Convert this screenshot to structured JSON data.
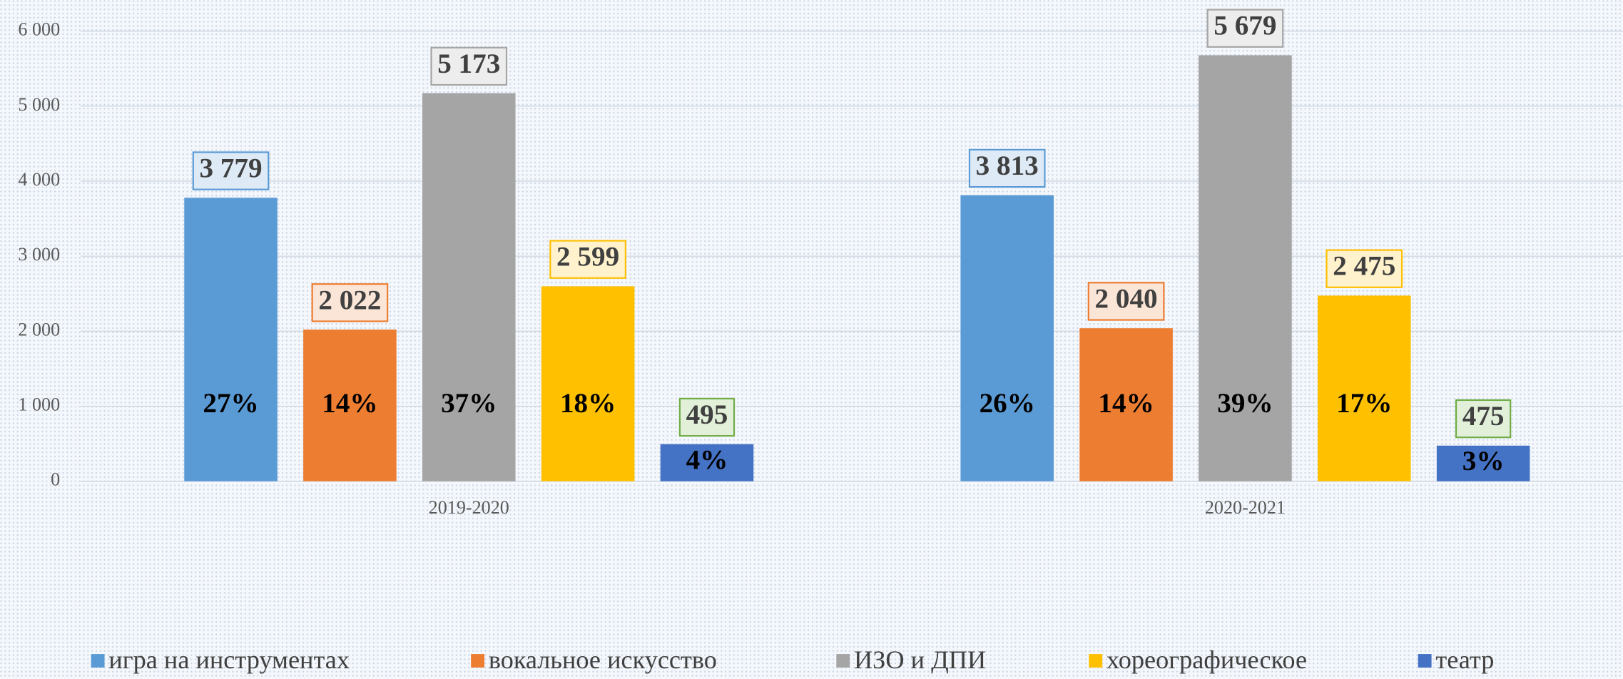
{
  "chart_data": {
    "type": "bar",
    "categories": [
      "2019-2020",
      "2020-2021"
    ],
    "series": [
      {
        "name": "игра на инструментах",
        "color": "#5b9bd5",
        "values": [
          3779,
          3813
        ],
        "value_labels": [
          "3 779",
          "3 813"
        ],
        "share_labels": [
          "27%",
          "26%"
        ]
      },
      {
        "name": "вокальное искусство",
        "color": "#ed7d31",
        "values": [
          2022,
          2040
        ],
        "value_labels": [
          "2 022",
          "2 040"
        ],
        "share_labels": [
          "14%",
          "14%"
        ]
      },
      {
        "name": "ИЗО и ДПИ",
        "color": "#a5a5a5",
        "values": [
          5173,
          5679
        ],
        "value_labels": [
          "5 173",
          "5 679"
        ],
        "share_labels": [
          "37%",
          "39%"
        ]
      },
      {
        "name": "хореографическое",
        "color": "#ffc000",
        "values": [
          2599,
          2475
        ],
        "value_labels": [
          "2 599",
          "2 475"
        ],
        "share_labels": [
          "18%",
          "17%"
        ]
      },
      {
        "name": "театр",
        "color": "#4472c4",
        "values": [
          495,
          475
        ],
        "value_labels": [
          "495",
          "475"
        ],
        "share_labels": [
          "4%",
          "3%"
        ]
      }
    ],
    "ylim": [
      0,
      6000
    ],
    "yticks": [
      0,
      {
        "value": 1000,
        "label": "1 000"
      },
      {
        "value": 2000,
        "label": "2 000"
      },
      {
        "value": 3000,
        "label": "3 000"
      },
      {
        "value": 4000,
        "label": "4 000"
      },
      {
        "value": 5000,
        "label": "5 000"
      },
      {
        "value": 6000,
        "label": "6 000"
      }
    ],
    "grid": true,
    "legend": "bottom"
  }
}
